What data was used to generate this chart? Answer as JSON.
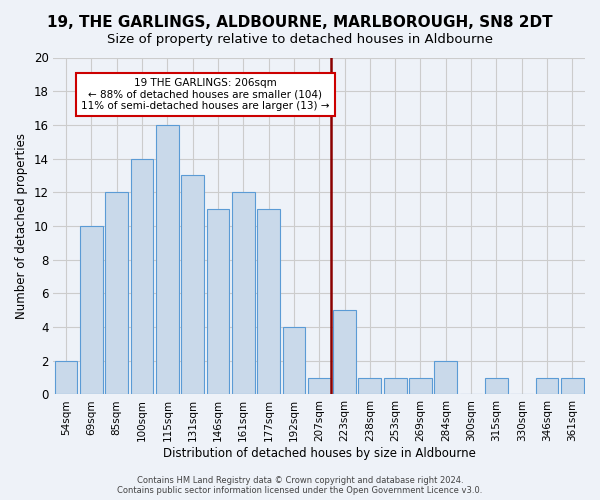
{
  "title": "19, THE GARLINGS, ALDBOURNE, MARLBOROUGH, SN8 2DT",
  "subtitle": "Size of property relative to detached houses in Aldbourne",
  "xlabel": "Distribution of detached houses by size in Aldbourne",
  "ylabel": "Number of detached properties",
  "bar_labels": [
    "54sqm",
    "69sqm",
    "85sqm",
    "100sqm",
    "115sqm",
    "131sqm",
    "146sqm",
    "161sqm",
    "177sqm",
    "192sqm",
    "207sqm",
    "223sqm",
    "238sqm",
    "253sqm",
    "269sqm",
    "284sqm",
    "300sqm",
    "315sqm",
    "330sqm",
    "346sqm",
    "361sqm"
  ],
  "bar_heights": [
    2,
    10,
    12,
    14,
    16,
    13,
    11,
    12,
    11,
    4,
    1,
    5,
    1,
    1,
    1,
    2,
    0,
    1,
    0,
    1,
    1
  ],
  "bar_color": "#c9d9ea",
  "bar_edge_color": "#5b9bd5",
  "vline_x": 10,
  "vline_color": "#8b0000",
  "annotation_text": "19 THE GARLINGS: 206sqm\n← 88% of detached houses are smaller (104)\n11% of semi-detached houses are larger (13) →",
  "annotation_box_edge": "#cc0000",
  "ylim": [
    0,
    20
  ],
  "yticks": [
    0,
    2,
    4,
    6,
    8,
    10,
    12,
    14,
    16,
    18,
    20
  ],
  "background_color": "#eef2f8",
  "footer_text": "Contains HM Land Registry data © Crown copyright and database right 2024.\nContains public sector information licensed under the Open Government Licence v3.0.",
  "title_fontsize": 11,
  "subtitle_fontsize": 9.5
}
